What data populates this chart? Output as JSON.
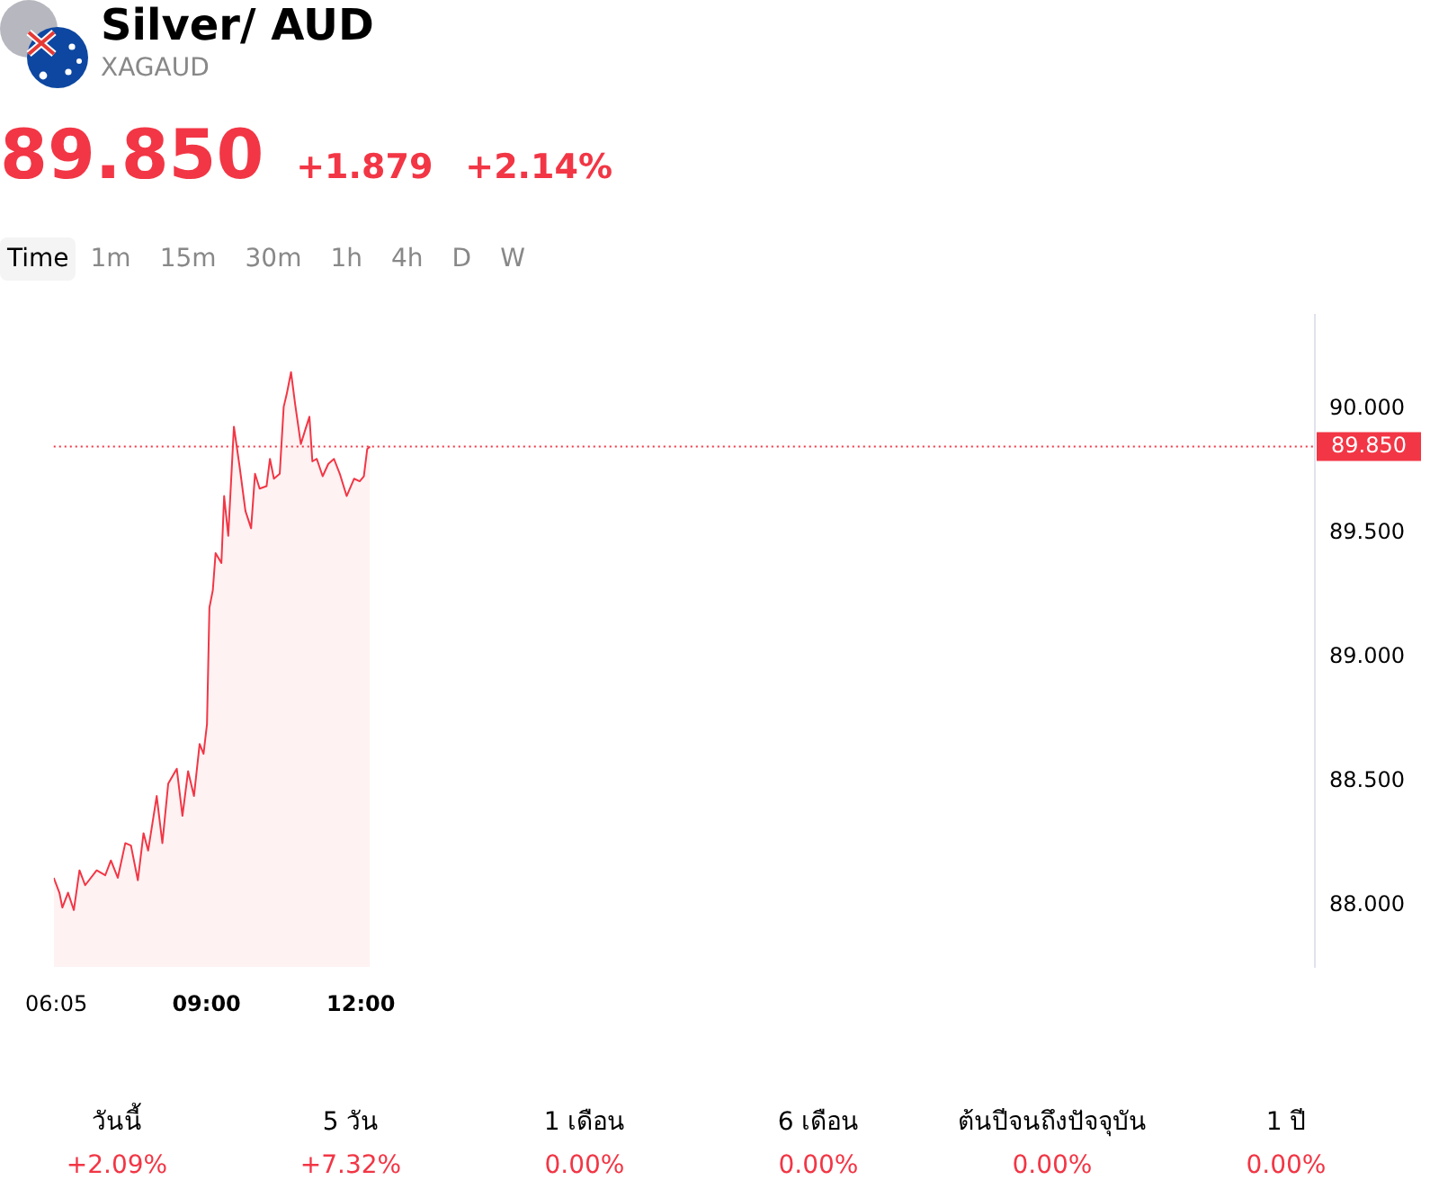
{
  "chart_data": {
    "type": "area",
    "title": "Silver/ AUD",
    "subtitle": "XAGAUD",
    "x": [
      6.033,
      6.143,
      6.2,
      6.31,
      6.423,
      6.533,
      6.643,
      6.867,
      7.033,
      7.143,
      7.277,
      7.423,
      7.533,
      7.667,
      7.777,
      7.867,
      8.033,
      8.143,
      8.257,
      8.423,
      8.533,
      8.643,
      8.757,
      8.867,
      8.943,
      9.01,
      9.057,
      9.123,
      9.177,
      9.29,
      9.343,
      9.423,
      9.533,
      9.643,
      9.757,
      9.867,
      9.943,
      10.033,
      10.167,
      10.233,
      10.31,
      10.423,
      10.5,
      10.557,
      10.643,
      10.723,
      10.833,
      10.923,
      11.0,
      11.057,
      11.143,
      11.257,
      11.367,
      11.477,
      11.59,
      11.723,
      11.867,
      11.977,
      12.057,
      12.123,
      12.177
    ],
    "series": [
      {
        "color": "#f23645",
        "values": [
          88.11,
          88.05,
          87.99,
          88.05,
          87.98,
          88.14,
          88.08,
          88.14,
          88.12,
          88.18,
          88.11,
          88.25,
          88.24,
          88.1,
          88.29,
          88.22,
          88.44,
          88.25,
          88.49,
          88.55,
          88.36,
          88.54,
          88.44,
          88.65,
          88.61,
          88.73,
          89.2,
          89.27,
          89.42,
          89.38,
          89.65,
          89.49,
          89.93,
          89.77,
          89.59,
          89.52,
          89.74,
          89.68,
          89.69,
          89.8,
          89.72,
          89.74,
          90.01,
          90.06,
          90.15,
          90.02,
          89.86,
          89.92,
          89.97,
          89.79,
          89.8,
          89.73,
          89.78,
          89.8,
          89.74,
          89.65,
          89.72,
          89.71,
          89.73,
          89.84,
          89.85
        ]
      }
    ],
    "xlim": [
      6.033,
      30.533
    ],
    "xticks": [
      {
        "value": 6.0833,
        "label": "06:05"
      },
      {
        "value": 9,
        "label": "09:00"
      },
      {
        "value": 12,
        "label": "12:00"
      }
    ],
    "ylim": [
      87.75,
      90.38
    ],
    "yticks": [
      {
        "value": 88,
        "label": "88.000"
      },
      {
        "value": 88.5,
        "label": "88.500"
      },
      {
        "value": 89,
        "label": "89.000"
      },
      {
        "value": 89.5,
        "label": "89.500"
      },
      {
        "value": 90,
        "label": "90.000"
      }
    ],
    "ref_lines": [
      {
        "axis": "y",
        "value": 89.85,
        "label": "89.850",
        "color": "#f23645",
        "line_style": "dotted"
      }
    ],
    "grid": false,
    "legend": false,
    "marker": "none",
    "line_style": "solid",
    "annotations": [
      "89.850",
      "+1.879",
      "+2.14%",
      "Time",
      "1m",
      "15m",
      "30m",
      "1h",
      "4h",
      "D",
      "W",
      "วันนี้",
      "+2.09%",
      "5 วัน",
      "+7.32%",
      "1 เดือน",
      "0.00%",
      "6 เดือน",
      "0.00%",
      "ต้นปีจนถึงปัจจุบัน",
      "0.00%",
      "1 ปี",
      "0.00%"
    ]
  }
}
